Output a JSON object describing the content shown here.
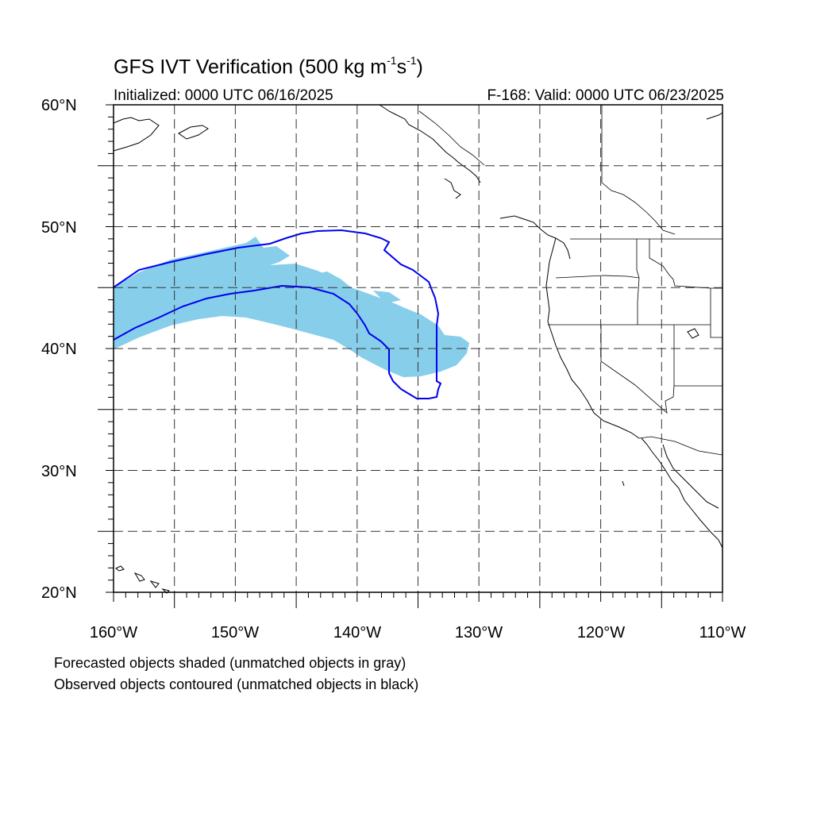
{
  "header": {
    "title_main": "GFS IVT Verification (500 kg m",
    "title_exp1": "-1",
    "title_mid": "s",
    "title_exp2": "-1",
    "title_end": ")",
    "initialized": "Initialized: 0000 UTC 06/16/2025",
    "valid": "F-168: Valid: 0000 UTC 06/23/2025"
  },
  "axes": {
    "lat_labels": [
      "60°N",
      "50°N",
      "40°N",
      "30°N",
      "20°N"
    ],
    "lon_labels": [
      "160°W",
      "150°W",
      "140°W",
      "130°W",
      "120°W",
      "110°W"
    ],
    "lat_range": [
      20,
      60
    ],
    "lon_range": [
      -160,
      -110
    ],
    "grid": "dashed every 5 degrees"
  },
  "legend": {
    "line1": "Forecasted objects shaded (unmatched objects in gray)",
    "line2": "Observed objects contoured (unmatched objects in black)"
  },
  "colors": {
    "forecast_fill": "#87ceeb",
    "observed_contour": "#0000ee",
    "coastline": "#000000",
    "grid": "#333333"
  }
}
